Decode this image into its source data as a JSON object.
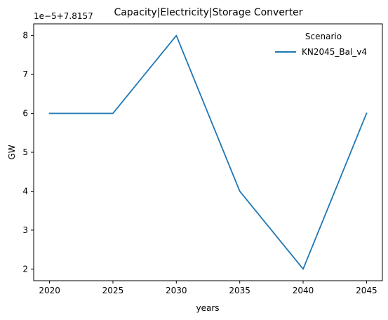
{
  "chart_data": {
    "type": "line",
    "title": "Capacity|Electricity|Storage Converter",
    "xlabel": "years",
    "ylabel": "GW",
    "y_offset_label": "1e−5+7.8157",
    "x": [
      2020,
      2025,
      2030,
      2035,
      2040,
      2045
    ],
    "x_ticks": [
      "2020",
      "2025",
      "2030",
      "2035",
      "2040",
      "2045"
    ],
    "y_ticks": [
      2,
      3,
      4,
      5,
      6,
      7,
      8
    ],
    "y_tick_labels": [
      "2",
      "3",
      "4",
      "5",
      "6",
      "7",
      "8"
    ],
    "xlim": [
      2018.75,
      2046.25
    ],
    "ylim": [
      1.7,
      8.3
    ],
    "grid": false,
    "legend": {
      "title": "Scenario",
      "placement": "top-right"
    },
    "series": [
      {
        "name": "KN2045_Bal_v4",
        "color": "#1f77b4",
        "values": [
          6,
          6,
          8,
          4,
          2,
          6
        ]
      }
    ]
  }
}
